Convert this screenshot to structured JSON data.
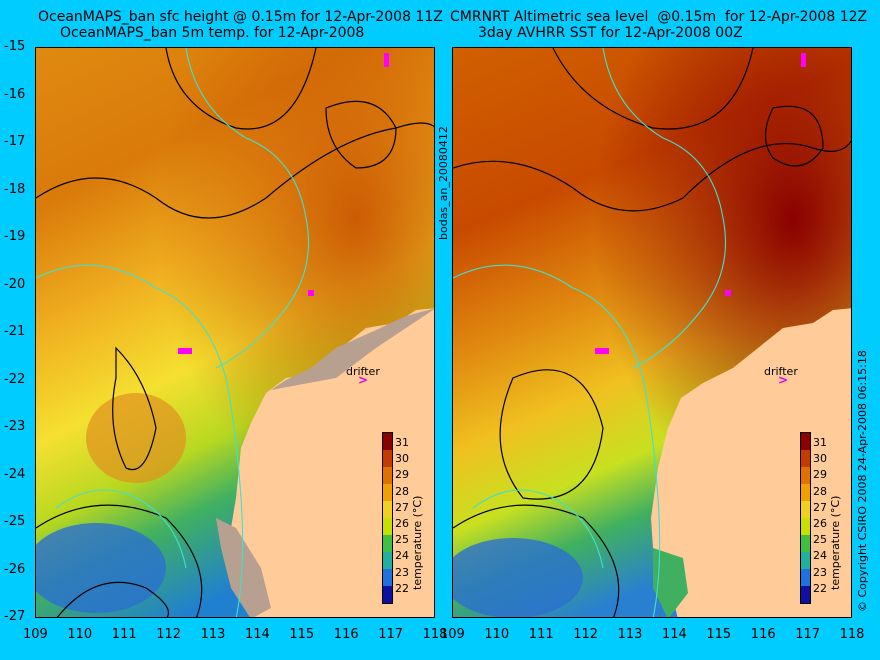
{
  "left_panel": {
    "title_line1": "OceanMAPS_ban sfc height @ 0.15m for 12-Apr-2008 11Z",
    "title_line2": "OceanMAPS_ban 5m temp. for 12-Apr-2008"
  },
  "right_panel": {
    "title_line1": "CMRNRT Altimetric sea level  @0.15m  for 12-Apr-2008 12Z",
    "title_line2": "3day AVHRR SST for 12-Apr-2008 00Z"
  },
  "y_axis_labels": [
    "-15",
    "-16",
    "-17",
    "-18",
    "-19",
    "-20",
    "-21",
    "-22",
    "-23",
    "-24",
    "-25",
    "-26",
    "-27"
  ],
  "x_axis_labels": [
    "109",
    "110",
    "111",
    "112",
    "113",
    "114",
    "115",
    "116",
    "117",
    "118"
  ],
  "colorbar": {
    "ticks": [
      "31",
      "30",
      "29",
      "28",
      "27",
      "26",
      "25",
      "24",
      "23",
      "22"
    ],
    "title": "temperature (°C)",
    "colors": [
      "#8b0000",
      "#c43a00",
      "#e07000",
      "#f0a000",
      "#f0d020",
      "#c8e000",
      "#40c040",
      "#20b0a0",
      "#2070e0",
      "#1010a0"
    ]
  },
  "drifter_label": "drifter",
  "drifter_marker": ">",
  "center_side_label": "bodas_an_20080412",
  "right_side_label": "© Copyright CSIRO 2008    24-Apr-2008 06:15:18",
  "colors": {
    "background": "#00ccff",
    "land": "#ffcc99",
    "contour": "#000000",
    "bathymetry": "#40e0d0",
    "highlight": "#ff00ff"
  }
}
